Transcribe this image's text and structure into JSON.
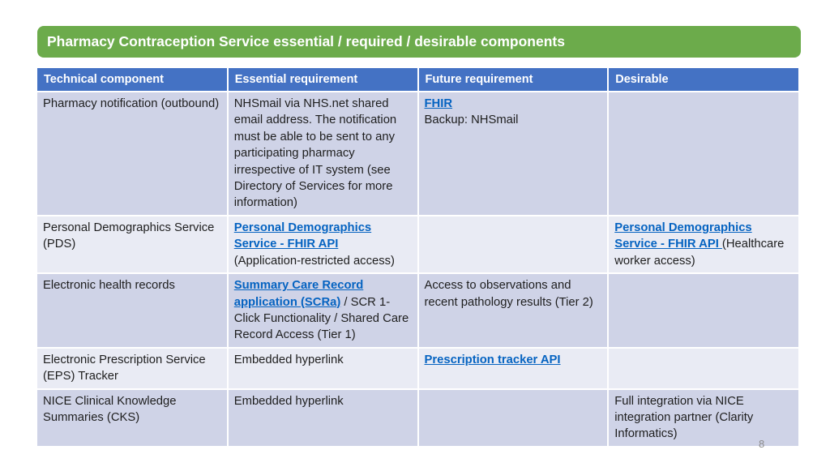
{
  "slide": {
    "title": "Pharmacy Contraception Service essential / required / desirable components",
    "page_number": "8"
  },
  "colors": {
    "title_bg": "#6CAB4B",
    "header_bg": "#4472C4",
    "header_text": "#FFFFFF",
    "band_dark": "#CFD3E7",
    "band_light": "#E9EBF4",
    "grid_line": "#FFFFFF",
    "link": "#0563C1",
    "text": "#1E1E1E",
    "page_number": "#8C8C8C"
  },
  "table": {
    "headers": [
      "Technical component",
      "Essential requirement",
      "Future requirement",
      "Desirable"
    ],
    "rows": [
      {
        "cells": [
          [
            {
              "text": "Pharmacy notification (outbound)"
            }
          ],
          [
            {
              "text": "NHSmail via NHS.net shared email address. The notification must be able to be sent to any participating pharmacy irrespective of IT system (see Directory of Services for more information)"
            }
          ],
          [
            {
              "text": "FHIR",
              "link": true
            },
            {
              "text": "Backup: NHSmail",
              "newline": true
            }
          ],
          []
        ]
      },
      {
        "cells": [
          [
            {
              "text": "Personal Demographics Service (PDS)"
            }
          ],
          [
            {
              "text": "Personal Demographics Service - FHIR API",
              "link": true
            },
            {
              "text": "(Application-restricted access)",
              "newline": true
            }
          ],
          [],
          [
            {
              "text": "Personal Demographics Service - FHIR API ",
              "link": true
            },
            {
              "text": " (Healthcare worker access)"
            }
          ]
        ]
      },
      {
        "cells": [
          [
            {
              "text": "Electronic health records"
            }
          ],
          [
            {
              "text": "Summary Care Record application (SCRa)",
              "link": true
            },
            {
              "text": " / SCR 1-Click Functionality / Shared Care Record Access (Tier 1)"
            }
          ],
          [
            {
              "text": "Access to observations and recent pathology results (Tier 2)"
            }
          ],
          []
        ]
      },
      {
        "cells": [
          [
            {
              "text": "Electronic Prescription Service (EPS) Tracker"
            }
          ],
          [
            {
              "text": "Embedded hyperlink"
            }
          ],
          [
            {
              "text": "Prescription tracker API",
              "link": true
            }
          ],
          []
        ]
      },
      {
        "cells": [
          [
            {
              "text": "NICE Clinical Knowledge Summaries (CKS)"
            }
          ],
          [
            {
              "text": "Embedded hyperlink"
            }
          ],
          [],
          [
            {
              "text": "Full integration via NICE integration partner (Clarity Informatics)"
            }
          ]
        ]
      }
    ]
  }
}
